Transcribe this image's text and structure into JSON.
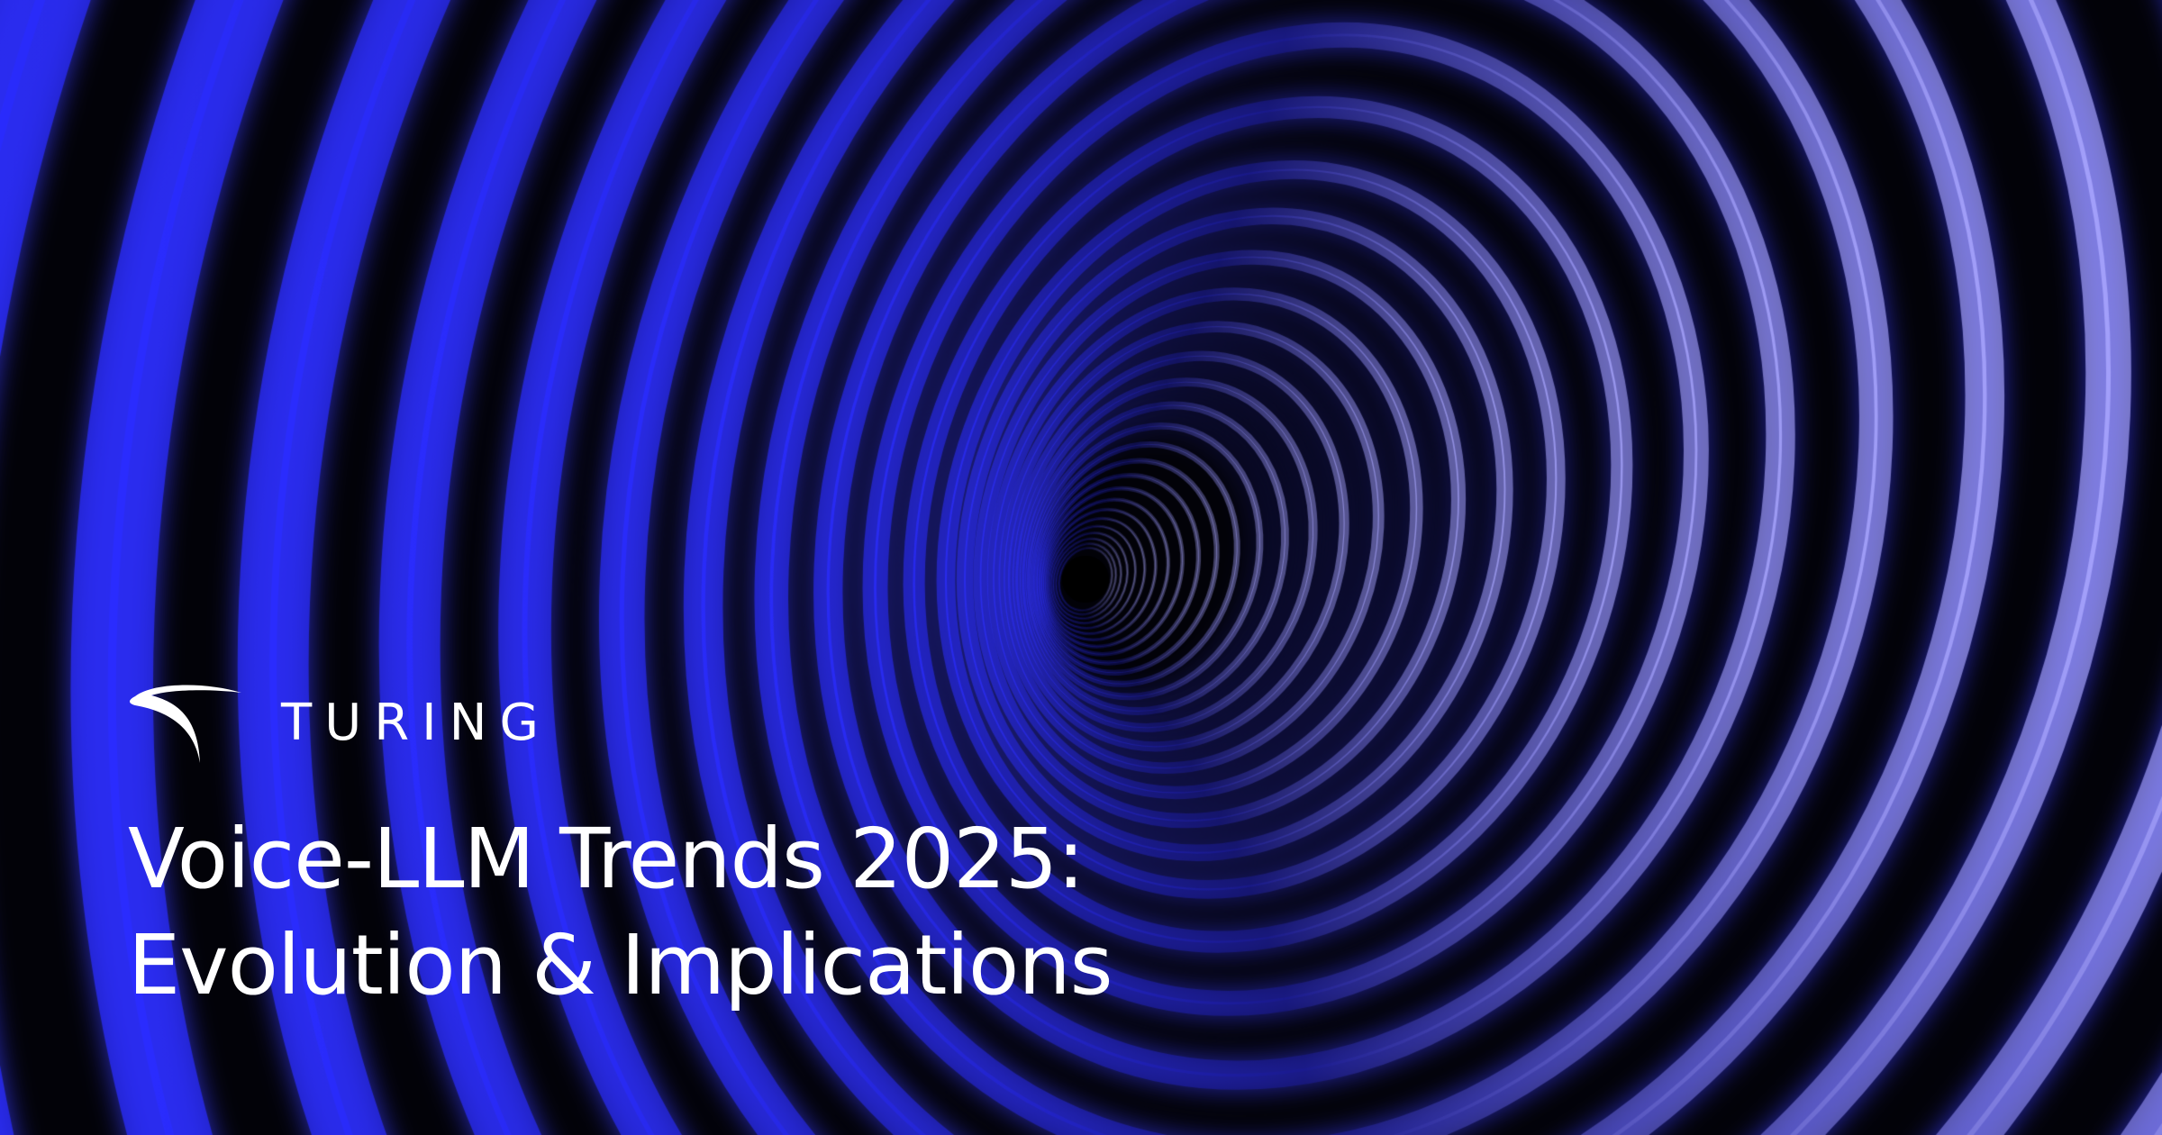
{
  "brand": {
    "name": "TURING",
    "logo_icon": "turing-swoosh-icon"
  },
  "title": {
    "line1": "Voice-LLM Trends 2025:",
    "line2": "Evolution & Implications"
  },
  "colors": {
    "background": "#020208",
    "ring_glow": "#3a3cff",
    "ring_highlight": "#a9a6ff",
    "text": "#ffffff"
  }
}
